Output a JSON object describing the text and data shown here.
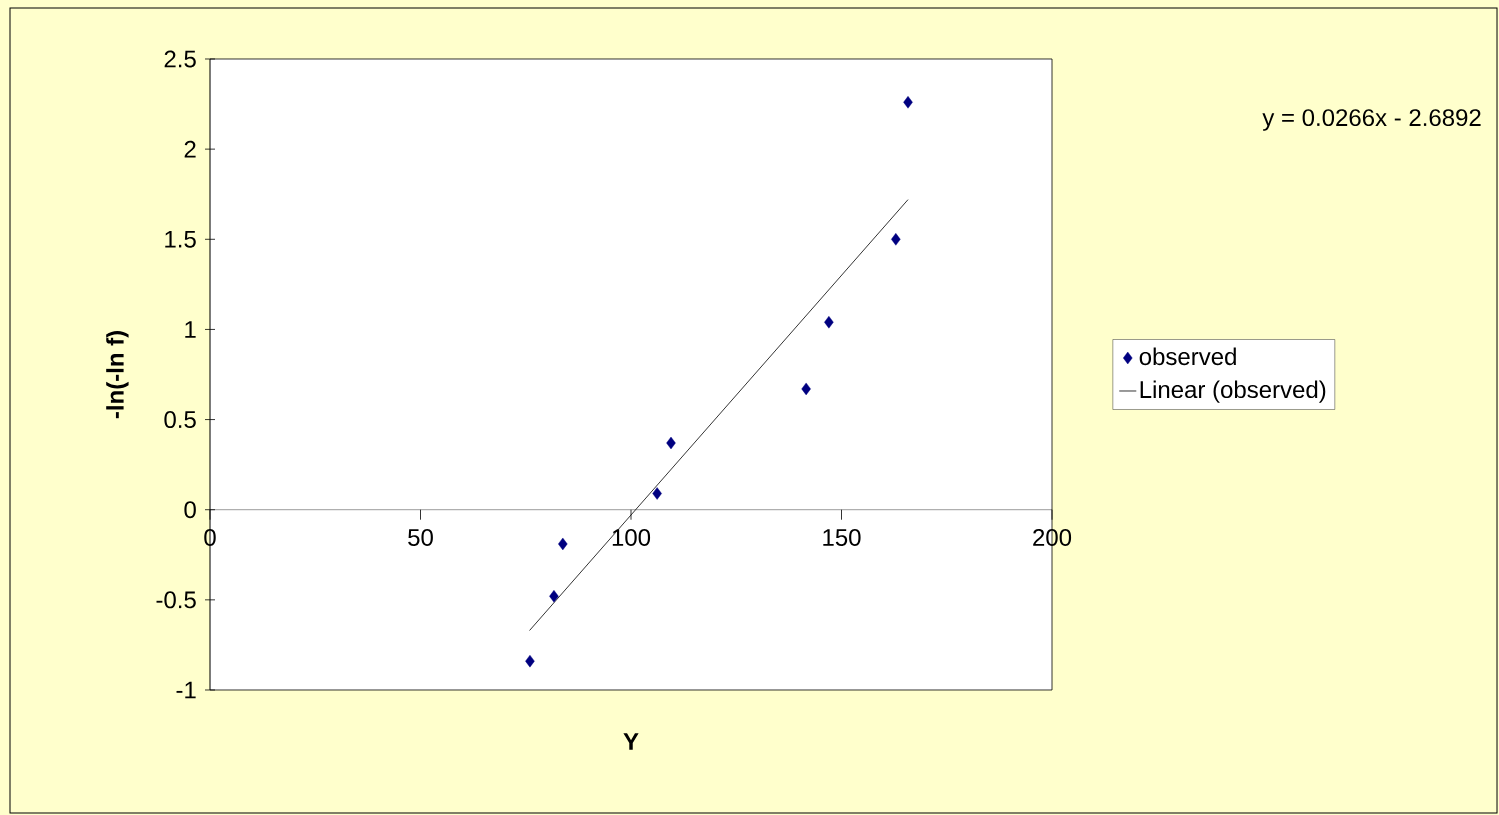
{
  "chart_data": {
    "type": "scatter",
    "xlabel": "Y",
    "ylabel": "-ln(-ln f)",
    "xlim": [
      0,
      200
    ],
    "xticks": [
      0,
      50,
      100,
      150,
      200
    ],
    "ylim": [
      -1,
      2.5
    ],
    "yticks": [
      -1,
      -0.5,
      0,
      0.5,
      1,
      1.5,
      2,
      2.5
    ],
    "legend": "right",
    "annotations": [
      "y = 0.0266x - 2.6892"
    ],
    "series": [
      {
        "name": "observed",
        "type": "scatter",
        "marker": "diamond",
        "color": "#000080",
        "x": [
          76.0,
          81.7,
          83.8,
          106.2,
          109.5,
          141.6,
          147.0,
          162.9,
          165.8
        ],
        "values": [
          -0.84,
          -0.48,
          -0.19,
          0.09,
          0.37,
          0.67,
          1.04,
          1.5,
          2.26
        ]
      },
      {
        "name": "Linear (observed)",
        "type": "line",
        "marker": "none",
        "color": "#000000",
        "x": [
          75.9,
          165.8
        ],
        "values": [
          -0.67,
          1.72
        ]
      }
    ]
  }
}
